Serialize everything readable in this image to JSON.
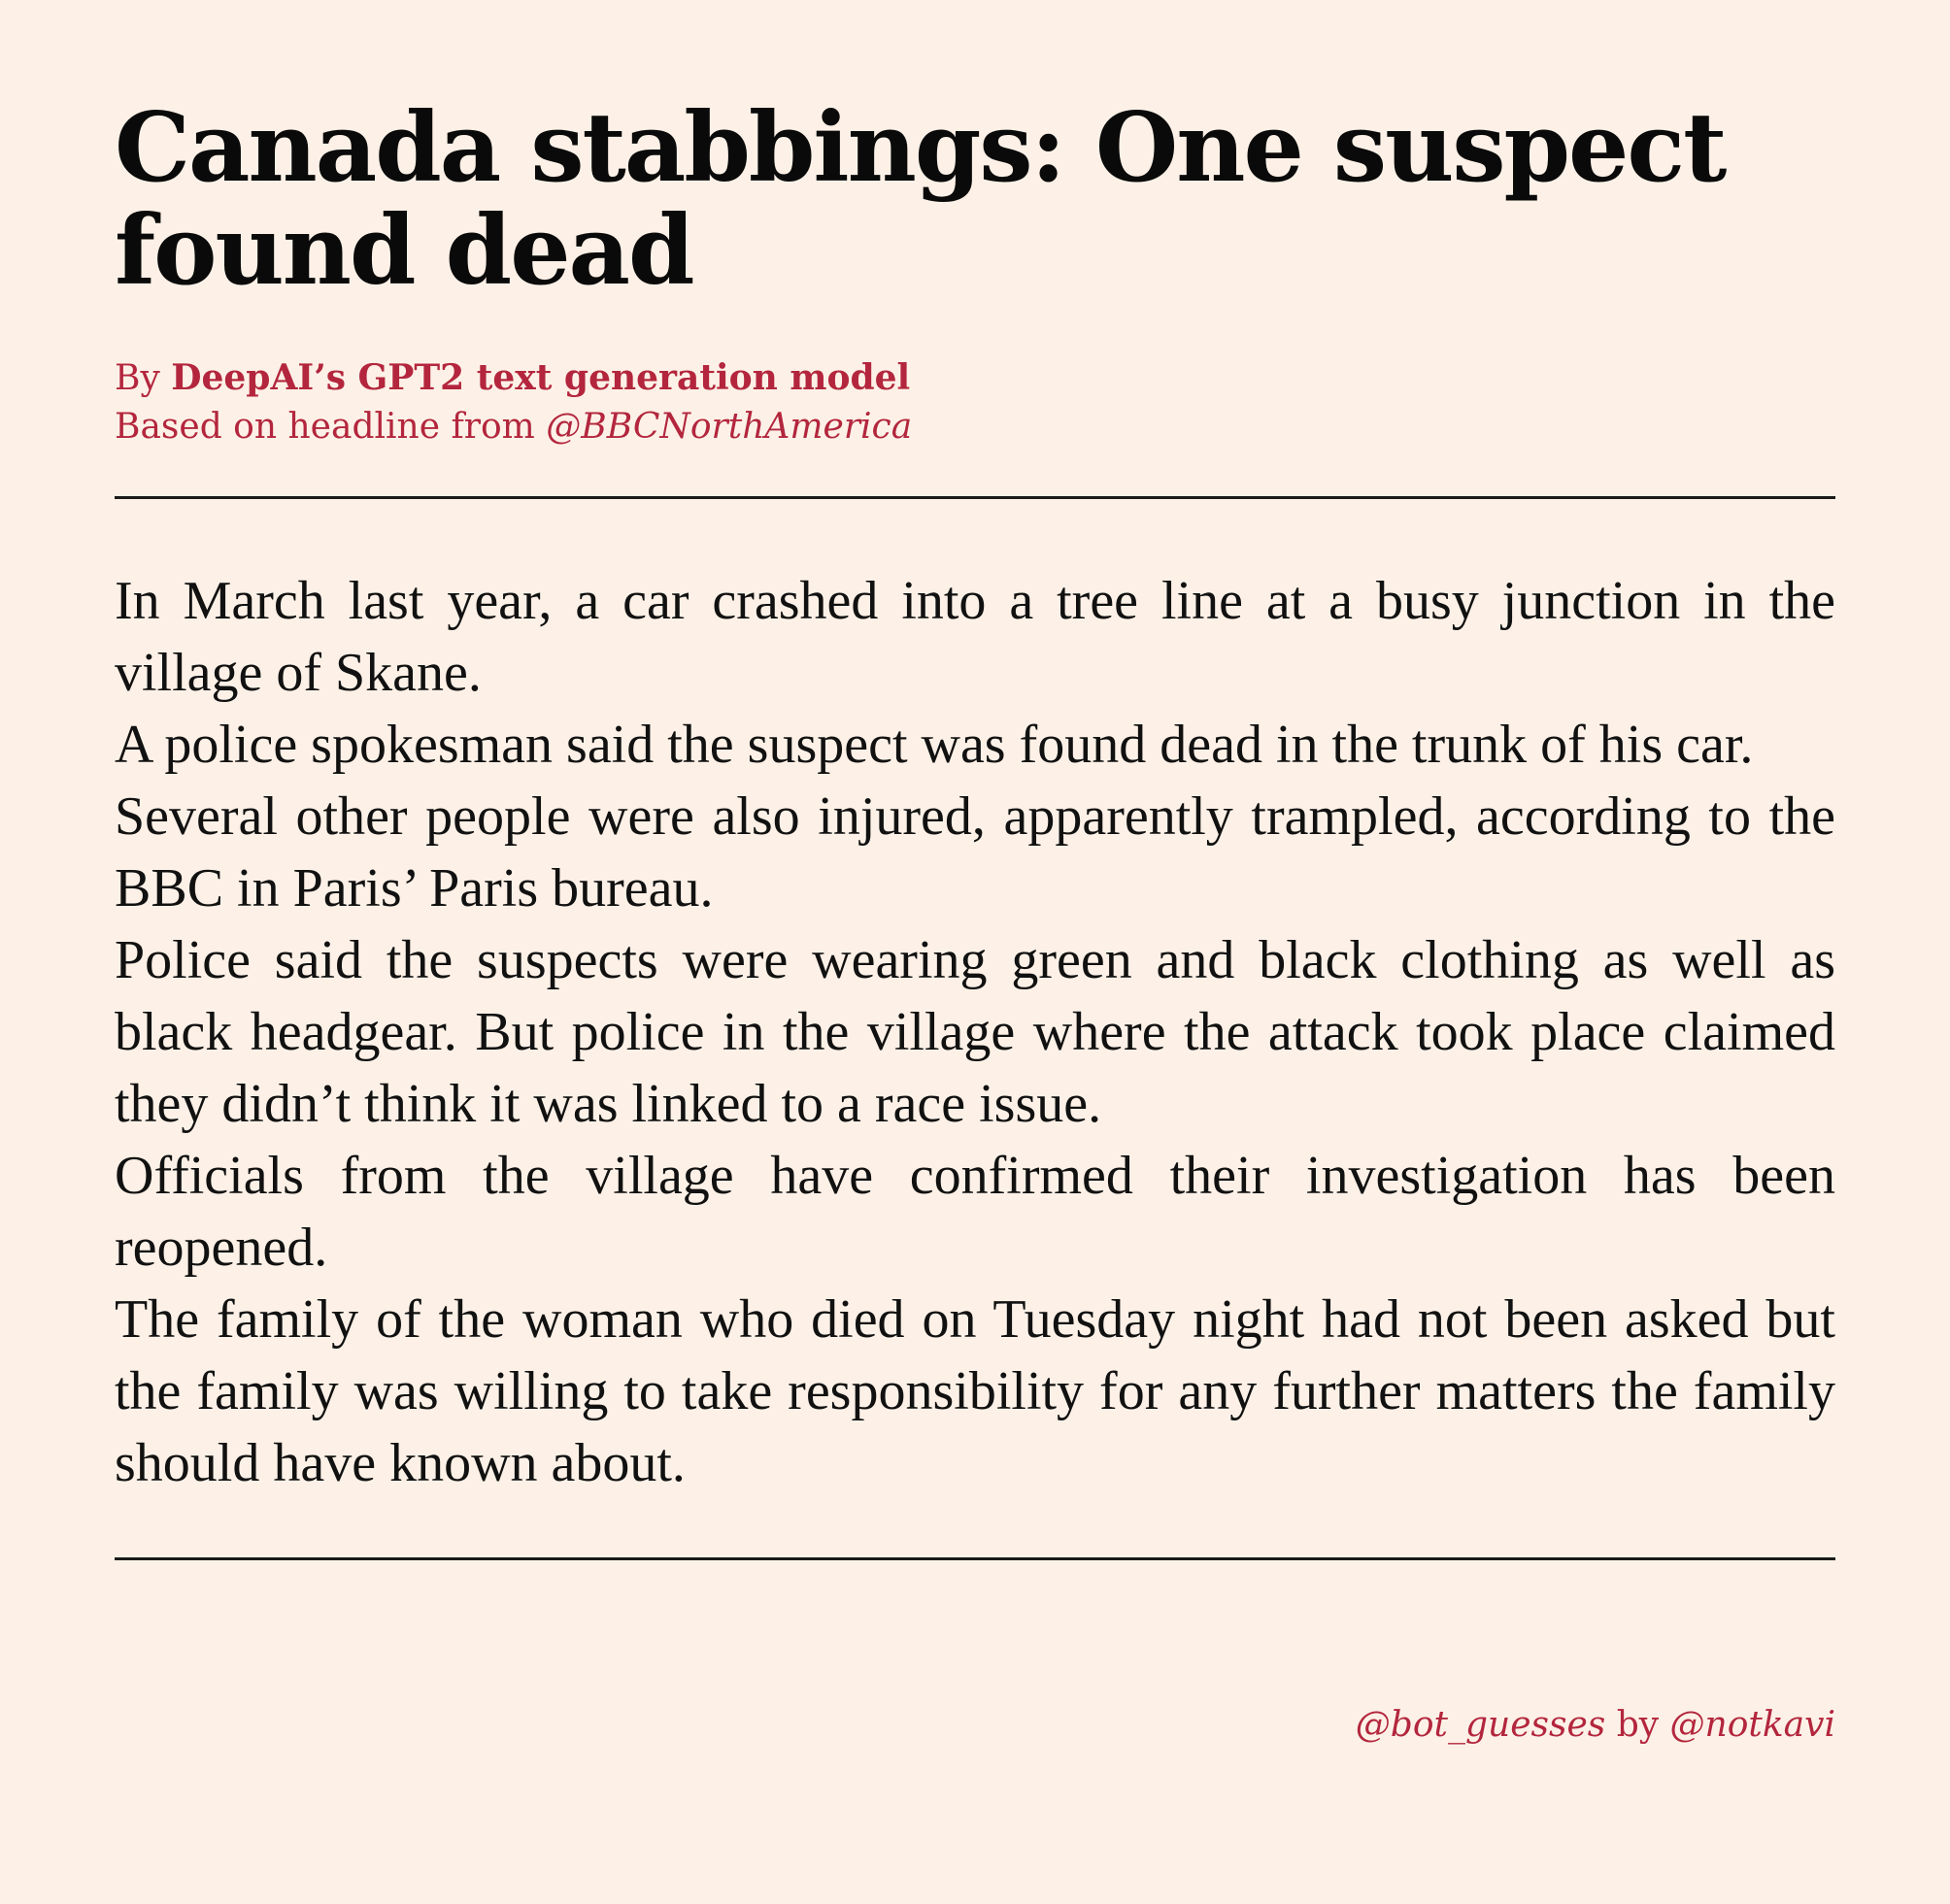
{
  "article": {
    "headline": "Canada stabbings: One suspect found dead",
    "byline_prefix": "By ",
    "byline_author": "DeepAI’s GPT2 text generation model",
    "source_prefix": "Based on headline from ",
    "source_handle": "@BBCNorthAmerica",
    "paragraphs": [
      "In March last year, a car crashed into a tree line at a busy junction in the village of Skane.",
      "A police spokesman said the suspect was found dead in the trunk of his car.",
      "Several other people were also injured, apparently trampled, according to the BBC in Paris’ Paris bureau.",
      "Police said the suspects were wearing green and black clothing as well as black headgear.  But police in the village where the attack took place claimed they didn’t think it was linked to a race issue.",
      "Officials from the village have confirmed their investigation has been reopened.",
      "The family of the woman who died on Tuesday night had not been asked but the family was willing to take responsibility for any further matters the family should have known about."
    ]
  },
  "footer": {
    "bot_handle": "@bot_guesses",
    "by_word": " by ",
    "author_handle": "@notkavi"
  },
  "colors": {
    "background": "#fdf1e7",
    "accent": "#b3263d",
    "text": "#111111"
  }
}
